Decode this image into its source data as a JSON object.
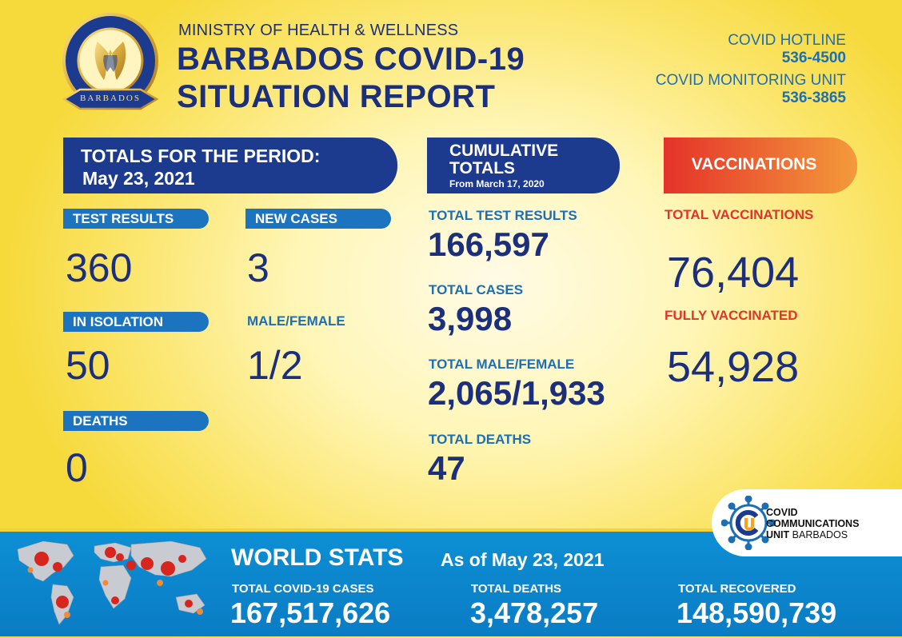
{
  "header": {
    "ministry": "MINISTRY OF HEALTH & WELLNESS",
    "title_line1": "BARBADOS COVID-19",
    "title_line2": "SITUATION REPORT",
    "seal_text": "MINISTRY OF HEALTH AND WELLNESS",
    "seal_country": "BARBADOS",
    "hotline_label": "COVID HOTLINE",
    "hotline_number": "536-4500",
    "monitoring_label": "COVID MONITORING UNIT",
    "monitoring_number": "536-3865"
  },
  "period": {
    "heading": "TOTALS FOR THE PERIOD:",
    "date": "May 23, 2021",
    "stats": [
      {
        "label": "TEST RESULTS",
        "value": "360"
      },
      {
        "label": "NEW CASES",
        "value": "3"
      },
      {
        "label": "IN ISOLATION",
        "value": "50"
      },
      {
        "label": "MALE/FEMALE",
        "value": "1/2"
      },
      {
        "label": "DEATHS",
        "value": "0"
      }
    ]
  },
  "cumulative": {
    "heading_line1": "CUMULATIVE",
    "heading_line2": "TOTALS",
    "since": "From March 17, 2020",
    "stats": [
      {
        "label": "TOTAL TEST RESULTS",
        "value": "166,597"
      },
      {
        "label": "TOTAL CASES",
        "value": "3,998"
      },
      {
        "label": "TOTAL MALE/FEMALE",
        "value": "2,065/1,933"
      },
      {
        "label": "TOTAL DEATHS",
        "value": "47"
      }
    ]
  },
  "vaccinations": {
    "heading": "VACCINATIONS",
    "stats": [
      {
        "label": "TOTAL VACCINATIONS",
        "value": "76,404"
      },
      {
        "label": "FULLY VACCINATED",
        "value": "54,928"
      }
    ]
  },
  "ccu_logo": {
    "line1": "COVID",
    "line2": "COMMUNICATIONS",
    "line3_bold": "UNIT",
    "line3_rest": "BARBADOS"
  },
  "world": {
    "heading": "WORLD STATS",
    "as_of": "As of May 23, 2021",
    "stats": [
      {
        "label": "TOTAL COVID-19 CASES",
        "value": "167,517,626"
      },
      {
        "label": "TOTAL DEATHS",
        "value": "3,478,257"
      },
      {
        "label": "TOTAL RECOVERED",
        "value": "148,590,739"
      }
    ]
  },
  "colors": {
    "navy": "#1c2f7c",
    "blue": "#1d6fb5",
    "red": "#e0352b",
    "orange": "#f39a3b",
    "yellow": "#f6d93a"
  }
}
